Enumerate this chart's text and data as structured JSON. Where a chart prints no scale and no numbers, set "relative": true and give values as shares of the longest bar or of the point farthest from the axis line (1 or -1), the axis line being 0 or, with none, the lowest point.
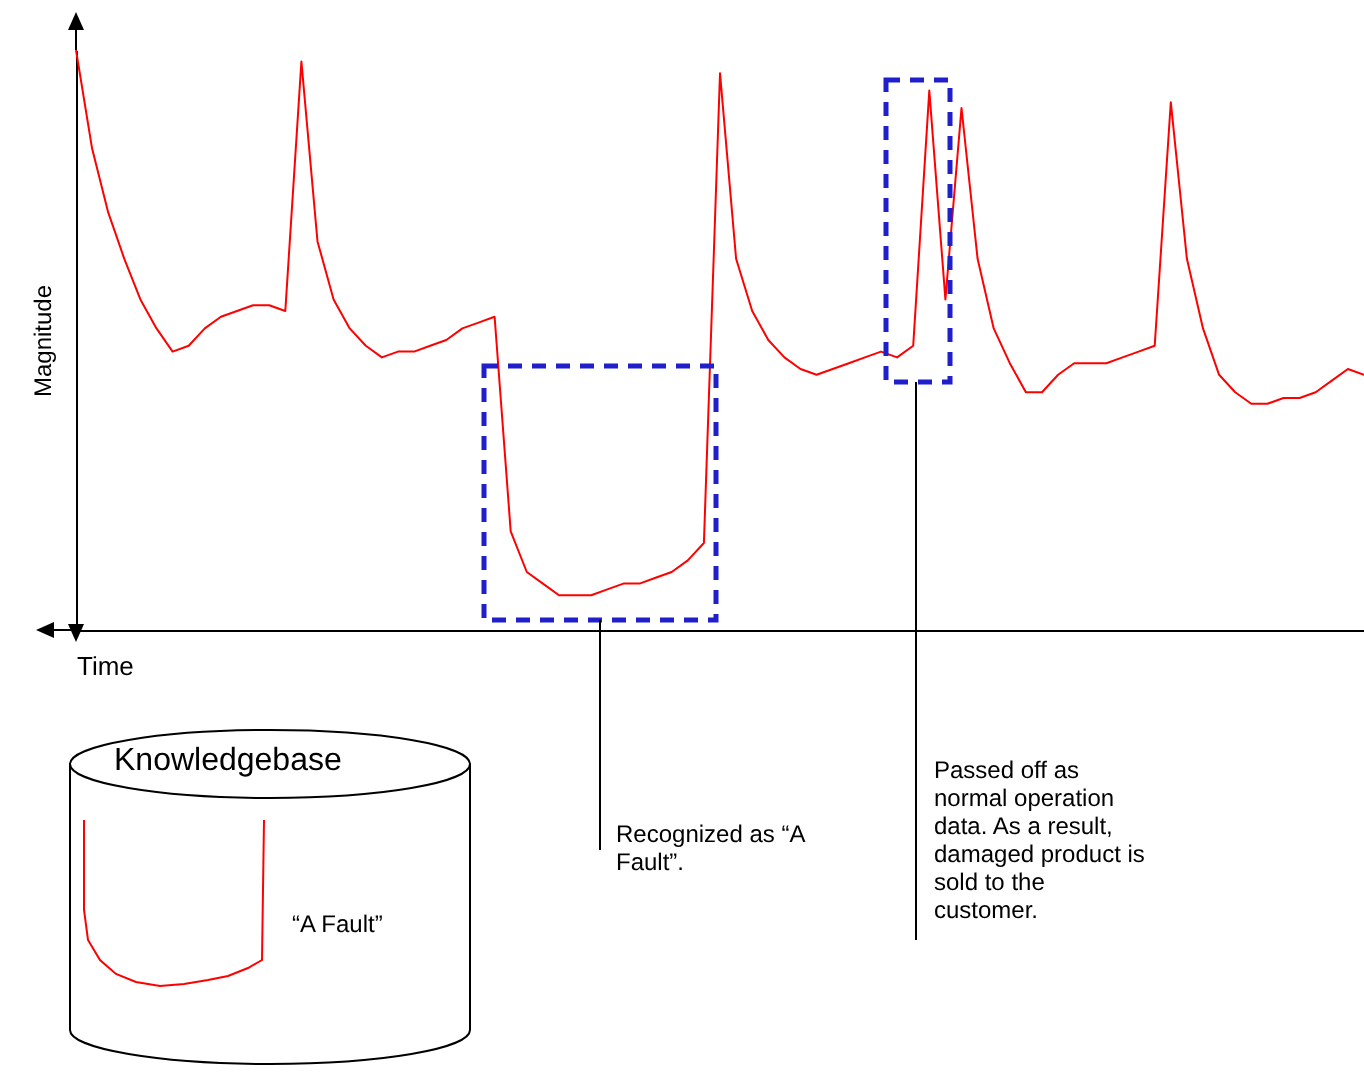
{
  "chart_data": {
    "type": "line",
    "xlabel": "Time",
    "ylabel": "Magnitude",
    "relative": true,
    "tick_labels": false,
    "grid": false,
    "legend": false,
    "marker": "none",
    "line_style": "solid",
    "categories": [
      null,
      null,
      null,
      null,
      null,
      null,
      null,
      null,
      null,
      null,
      null,
      null,
      null,
      null,
      null,
      null,
      null,
      null,
      null,
      null,
      null,
      null,
      null,
      null,
      null,
      null,
      null,
      null,
      null,
      null,
      null,
      null,
      null,
      null,
      null,
      null,
      null,
      null,
      null,
      null,
      null,
      null,
      null,
      null,
      null,
      null,
      null,
      null,
      null,
      null,
      null,
      null,
      null,
      null,
      null,
      null,
      null,
      null,
      null,
      null,
      null,
      null,
      null,
      null,
      null,
      null,
      null,
      null,
      null,
      null,
      null,
      null,
      null,
      null,
      null,
      null,
      null,
      null,
      null,
      null,
      null
    ],
    "series": [
      {
        "color": "#ff0000",
        "values": [
          1.0,
          0.83,
          0.72,
          0.64,
          0.57,
          0.52,
          0.48,
          0.49,
          0.52,
          0.54,
          0.55,
          0.56,
          0.56,
          0.55,
          0.98,
          0.67,
          0.57,
          0.52,
          0.49,
          0.47,
          0.48,
          0.48,
          0.49,
          0.5,
          0.52,
          0.53,
          0.54,
          0.17,
          0.1,
          0.08,
          0.06,
          0.06,
          0.06,
          0.07,
          0.08,
          0.08,
          0.09,
          0.1,
          0.12,
          0.15,
          0.96,
          0.64,
          0.55,
          0.5,
          0.47,
          0.45,
          0.44,
          0.45,
          0.46,
          0.47,
          0.48,
          0.47,
          0.49,
          0.93,
          0.57,
          0.9,
          0.64,
          0.52,
          0.46,
          0.41,
          0.41,
          0.44,
          0.46,
          0.46,
          0.46,
          0.47,
          0.48,
          0.49,
          0.91,
          0.64,
          0.52,
          0.44,
          0.41,
          0.39,
          0.39,
          0.4,
          0.4,
          0.41,
          0.43,
          0.45,
          0.44
        ]
      }
    ],
    "annotations": [
      "Recognized as “A Fault”.",
      "Passed off as normal operation data. As a result, damaged product is sold to the customer.",
      "Knowledgebase",
      "“A Fault”"
    ]
  }
}
